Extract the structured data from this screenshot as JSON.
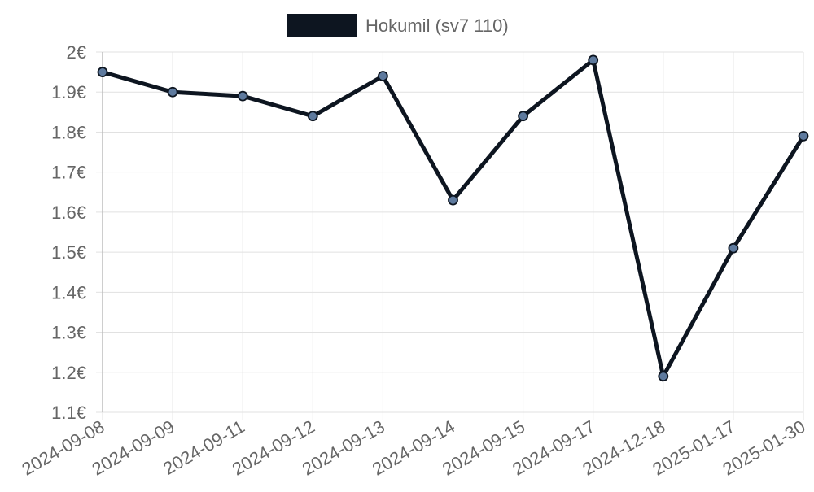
{
  "chart_data": {
    "type": "line",
    "categories": [
      "2024-09-08",
      "2024-09-09",
      "2024-09-11",
      "2024-09-12",
      "2024-09-13",
      "2024-09-14",
      "2024-09-15",
      "2024-09-17",
      "2024-12-18",
      "2025-01-17",
      "2025-01-30"
    ],
    "series": [
      {
        "name": "Hokumil (sv7 110)",
        "values": [
          1.95,
          1.9,
          1.89,
          1.84,
          1.94,
          1.63,
          1.84,
          1.98,
          1.19,
          1.51,
          1.79
        ],
        "line_color": "#0d1520",
        "point_color": "#5e7a9e"
      }
    ],
    "y_ticks": [
      "1.1€",
      "1.2€",
      "1.3€",
      "1.4€",
      "1.5€",
      "1.6€",
      "1.7€",
      "1.8€",
      "1.9€",
      "2€"
    ],
    "ylim": [
      1.1,
      2.0
    ],
    "y_unit": "€",
    "grid": true,
    "legend_position": "top"
  }
}
